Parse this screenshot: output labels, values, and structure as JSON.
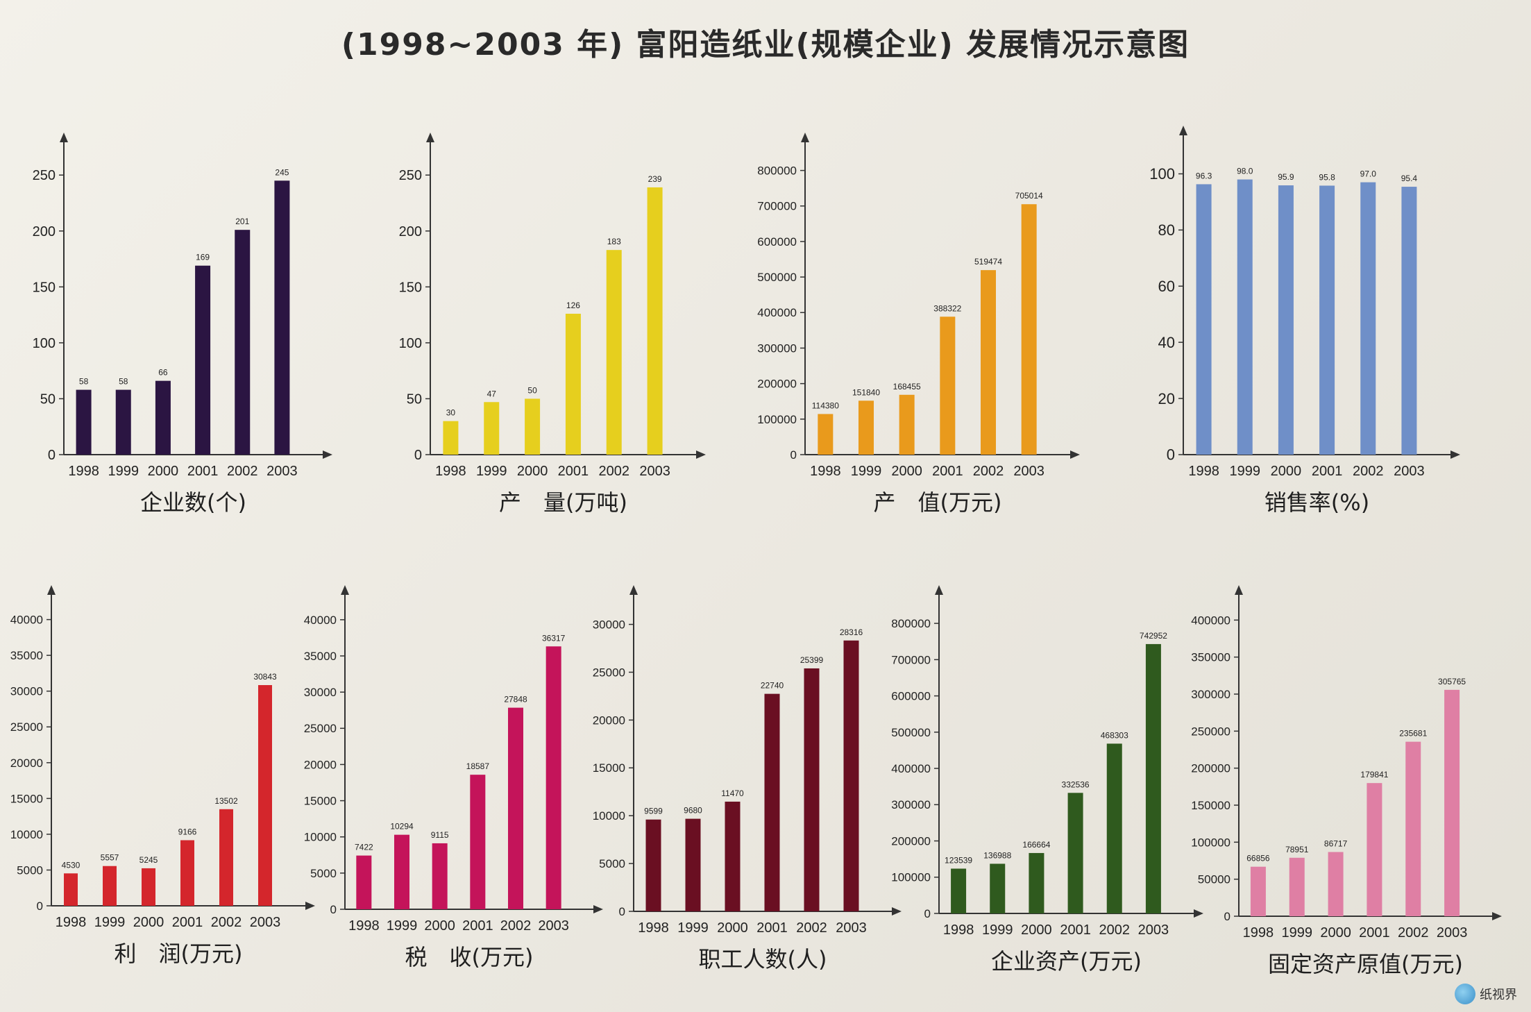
{
  "title": "(1998~2003 年) 富阳造纸业(规模企业) 发展情况示意图",
  "watermark": "纸视界",
  "chart_data": [
    {
      "type": "bar",
      "title": "企业数(个)",
      "categories": [
        "1998",
        "1999",
        "2000",
        "2001",
        "2002",
        "2003"
      ],
      "values": [
        58,
        58,
        66,
        169,
        201,
        245
      ],
      "value_labels": [
        "58",
        "58",
        "66",
        "169",
        "201",
        "245"
      ],
      "ylim": [
        0,
        270
      ],
      "yticks": [
        0,
        50,
        100,
        150,
        200,
        250
      ],
      "color": "#2b1542"
    },
    {
      "type": "bar",
      "title": "产　量(万吨)",
      "categories": [
        "1998",
        "1999",
        "2000",
        "2001",
        "2002",
        "2003"
      ],
      "values": [
        30,
        47,
        50,
        126,
        183,
        239
      ],
      "value_labels": [
        "30",
        "47",
        "50",
        "126",
        "183",
        "239"
      ],
      "ylim": [
        0,
        270
      ],
      "yticks": [
        0,
        50,
        100,
        150,
        200,
        250
      ],
      "color": "#e6cf1e"
    },
    {
      "type": "bar",
      "title": "产　值(万元)",
      "categories": [
        "1998",
        "1999",
        "2000",
        "2001",
        "2002",
        "2003"
      ],
      "values": [
        114380,
        151840,
        168455,
        388322,
        519474,
        705014
      ],
      "value_labels": [
        "114380",
        "151840",
        "168455",
        "388322",
        "519474",
        "705014"
      ],
      "ylim": [
        0,
        850000
      ],
      "yticks": [
        0,
        100000,
        200000,
        300000,
        400000,
        500000,
        600000,
        700000,
        800000
      ],
      "color": "#e99a1c"
    },
    {
      "type": "bar",
      "title": "销售率(%)",
      "categories": [
        "1998",
        "1999",
        "2000",
        "2001",
        "2002",
        "2003"
      ],
      "values": [
        96.3,
        98.0,
        95.9,
        95.8,
        97.0,
        95.4
      ],
      "value_labels": [
        "96.3",
        "98.0",
        "95.9",
        "95.8",
        "97.0",
        "95.4"
      ],
      "ylim": [
        0,
        110
      ],
      "yticks": [
        0,
        20,
        40,
        60,
        80,
        100
      ],
      "color": "#6f8fc8"
    },
    {
      "type": "bar",
      "title": "利　润(万元)",
      "categories": [
        "1998",
        "1999",
        "2000",
        "2001",
        "2002",
        "2003"
      ],
      "values": [
        4530,
        5557,
        5245,
        9166,
        13502,
        30843
      ],
      "value_labels": [
        "4530",
        "5557",
        "5245",
        "9166",
        "13502",
        "30843"
      ],
      "ylim": [
        0,
        42000
      ],
      "yticks": [
        0,
        5000,
        10000,
        15000,
        20000,
        25000,
        30000,
        35000,
        40000
      ],
      "color": "#d4262c"
    },
    {
      "type": "bar",
      "title": "税　收(万元)",
      "categories": [
        "1998",
        "1999",
        "2000",
        "2001",
        "2002",
        "2003"
      ],
      "values": [
        7422,
        10294,
        9115,
        18587,
        27848,
        36317
      ],
      "value_labels": [
        "7422",
        "10294",
        "9115",
        "18587",
        "27848",
        "36317"
      ],
      "ylim": [
        0,
        42000
      ],
      "yticks": [
        0,
        5000,
        10000,
        15000,
        20000,
        25000,
        30000,
        35000,
        40000
      ],
      "color": "#c4145a"
    },
    {
      "type": "bar",
      "title": "职工人数(人)",
      "categories": [
        "1998",
        "1999",
        "2000",
        "2001",
        "2002",
        "2003"
      ],
      "values": [
        9599,
        9680,
        11470,
        22740,
        25399,
        28316
      ],
      "value_labels": [
        "9599",
        "9680",
        "11470",
        "22740",
        "25399",
        "28316"
      ],
      "ylim": [
        0,
        32000
      ],
      "yticks": [
        0,
        5000,
        10000,
        15000,
        20000,
        25000,
        30000
      ],
      "color": "#6a0f22"
    },
    {
      "type": "bar",
      "title": "企业资产(万元)",
      "categories": [
        "1998",
        "1999",
        "2000",
        "2001",
        "2002",
        "2003"
      ],
      "values": [
        123539,
        136988,
        166664,
        332536,
        468303,
        742952
      ],
      "value_labels": [
        "123539",
        "136988",
        "166664",
        "332536",
        "468303",
        "742952"
      ],
      "ylim": [
        0,
        850000
      ],
      "yticks": [
        0,
        100000,
        200000,
        300000,
        400000,
        500000,
        600000,
        700000,
        800000
      ],
      "color": "#2f5a1e"
    },
    {
      "type": "bar",
      "title": "固定资产原值(万元)",
      "categories": [
        "1998",
        "1999",
        "2000",
        "2001",
        "2002",
        "2003"
      ],
      "values": [
        66856,
        78951,
        86717,
        179841,
        235681,
        305765
      ],
      "value_labels": [
        "66856",
        "78951",
        "86717",
        "179841",
        "235681",
        "305765"
      ],
      "ylim": [
        0,
        420000
      ],
      "yticks": [
        0,
        50000,
        100000,
        150000,
        200000,
        250000,
        300000,
        350000,
        400000
      ],
      "color": "#df7fa4"
    }
  ]
}
